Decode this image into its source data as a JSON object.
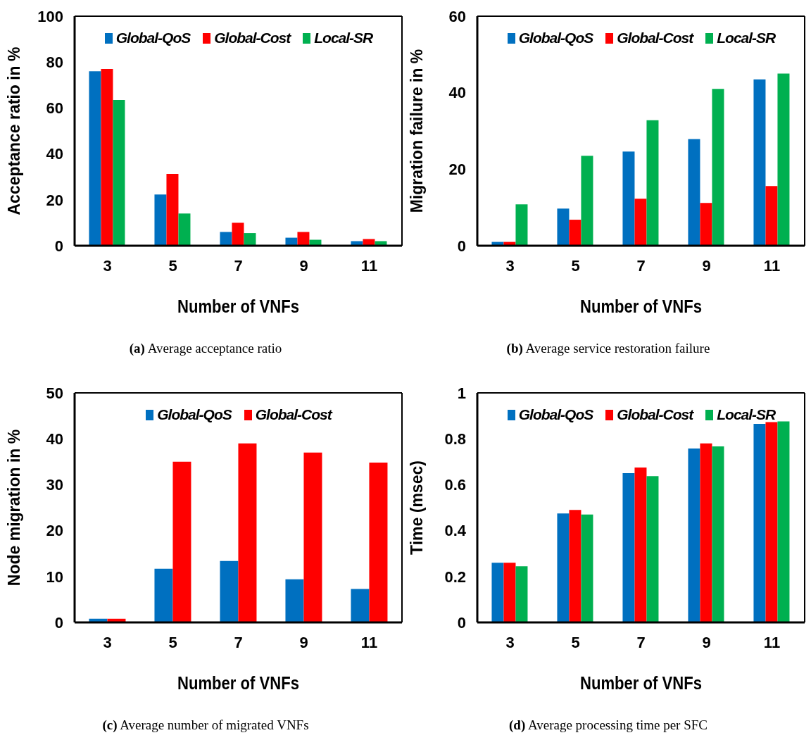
{
  "chart_data": [
    {
      "type": "bar",
      "categories": [
        "3",
        "5",
        "7",
        "9",
        "11"
      ],
      "xlabel": "Number of VNFs",
      "ylabel": "Acceptance ratio in %",
      "ylim": [
        0,
        100
      ],
      "yticks": [
        0,
        20,
        40,
        60,
        80,
        100
      ],
      "legend": "top",
      "annotations": [
        "(a) Average acceptance ratio"
      ],
      "series": [
        {
          "name": "Global-QoS",
          "color": "#0070c0",
          "values": [
            76,
            22.3,
            6,
            3.5,
            2
          ]
        },
        {
          "name": "Global-Cost",
          "color": "#ff0000",
          "values": [
            77,
            31.3,
            10,
            6,
            2.9
          ]
        },
        {
          "name": "Local-SR",
          "color": "#00b050",
          "values": [
            63.5,
            14,
            5.5,
            2.6,
            2
          ]
        }
      ]
    },
    {
      "type": "bar",
      "categories": [
        "3",
        "5",
        "7",
        "9",
        "11"
      ],
      "xlabel": "Number of VNFs",
      "ylabel": "Migration failure in %",
      "ylim": [
        0,
        60
      ],
      "yticks": [
        0,
        20,
        40,
        60
      ],
      "legend": "top",
      "annotations": [
        "(b) Average service restoration failure"
      ],
      "series": [
        {
          "name": "Global-QoS",
          "color": "#0070c0",
          "values": [
            1,
            9.7,
            24.6,
            27.9,
            43.5
          ]
        },
        {
          "name": "Global-Cost",
          "color": "#ff0000",
          "values": [
            1,
            6.8,
            12.3,
            11.2,
            15.6
          ]
        },
        {
          "name": "Local-SR",
          "color": "#00b050",
          "values": [
            10.8,
            23.5,
            32.8,
            41,
            45
          ]
        }
      ]
    },
    {
      "type": "bar",
      "categories": [
        "3",
        "5",
        "7",
        "9",
        "11"
      ],
      "xlabel": "Number of VNFs",
      "ylabel": "Node migration in %",
      "ylim": [
        0,
        50
      ],
      "yticks": [
        0,
        10,
        20,
        30,
        40,
        50
      ],
      "legend": "top",
      "annotations": [
        "(c) Average number of migrated VNFs"
      ],
      "series": [
        {
          "name": "Global-QoS",
          "color": "#0070c0",
          "values": [
            0.8,
            11.7,
            13.4,
            9.4,
            7.3
          ]
        },
        {
          "name": "Global-Cost",
          "color": "#ff0000",
          "values": [
            0.8,
            35,
            39,
            37,
            34.8
          ]
        }
      ]
    },
    {
      "type": "bar",
      "categories": [
        "3",
        "5",
        "7",
        "9",
        "11"
      ],
      "xlabel": "Number of VNFs",
      "ylabel": "Time (msec)",
      "ylim": [
        0,
        1
      ],
      "yticks": [
        0,
        0.2,
        0.4,
        0.6,
        0.8,
        1
      ],
      "legend": "top",
      "annotations": [
        "(d) Average processing time per SFC"
      ],
      "series": [
        {
          "name": "Global-QoS",
          "color": "#0070c0",
          "values": [
            0.26,
            0.475,
            0.65,
            0.758,
            0.865
          ]
        },
        {
          "name": "Global-Cost",
          "color": "#ff0000",
          "values": [
            0.26,
            0.49,
            0.675,
            0.78,
            0.873
          ]
        },
        {
          "name": "Local-SR",
          "color": "#00b050",
          "values": [
            0.245,
            0.47,
            0.637,
            0.767,
            0.876
          ]
        }
      ]
    }
  ]
}
